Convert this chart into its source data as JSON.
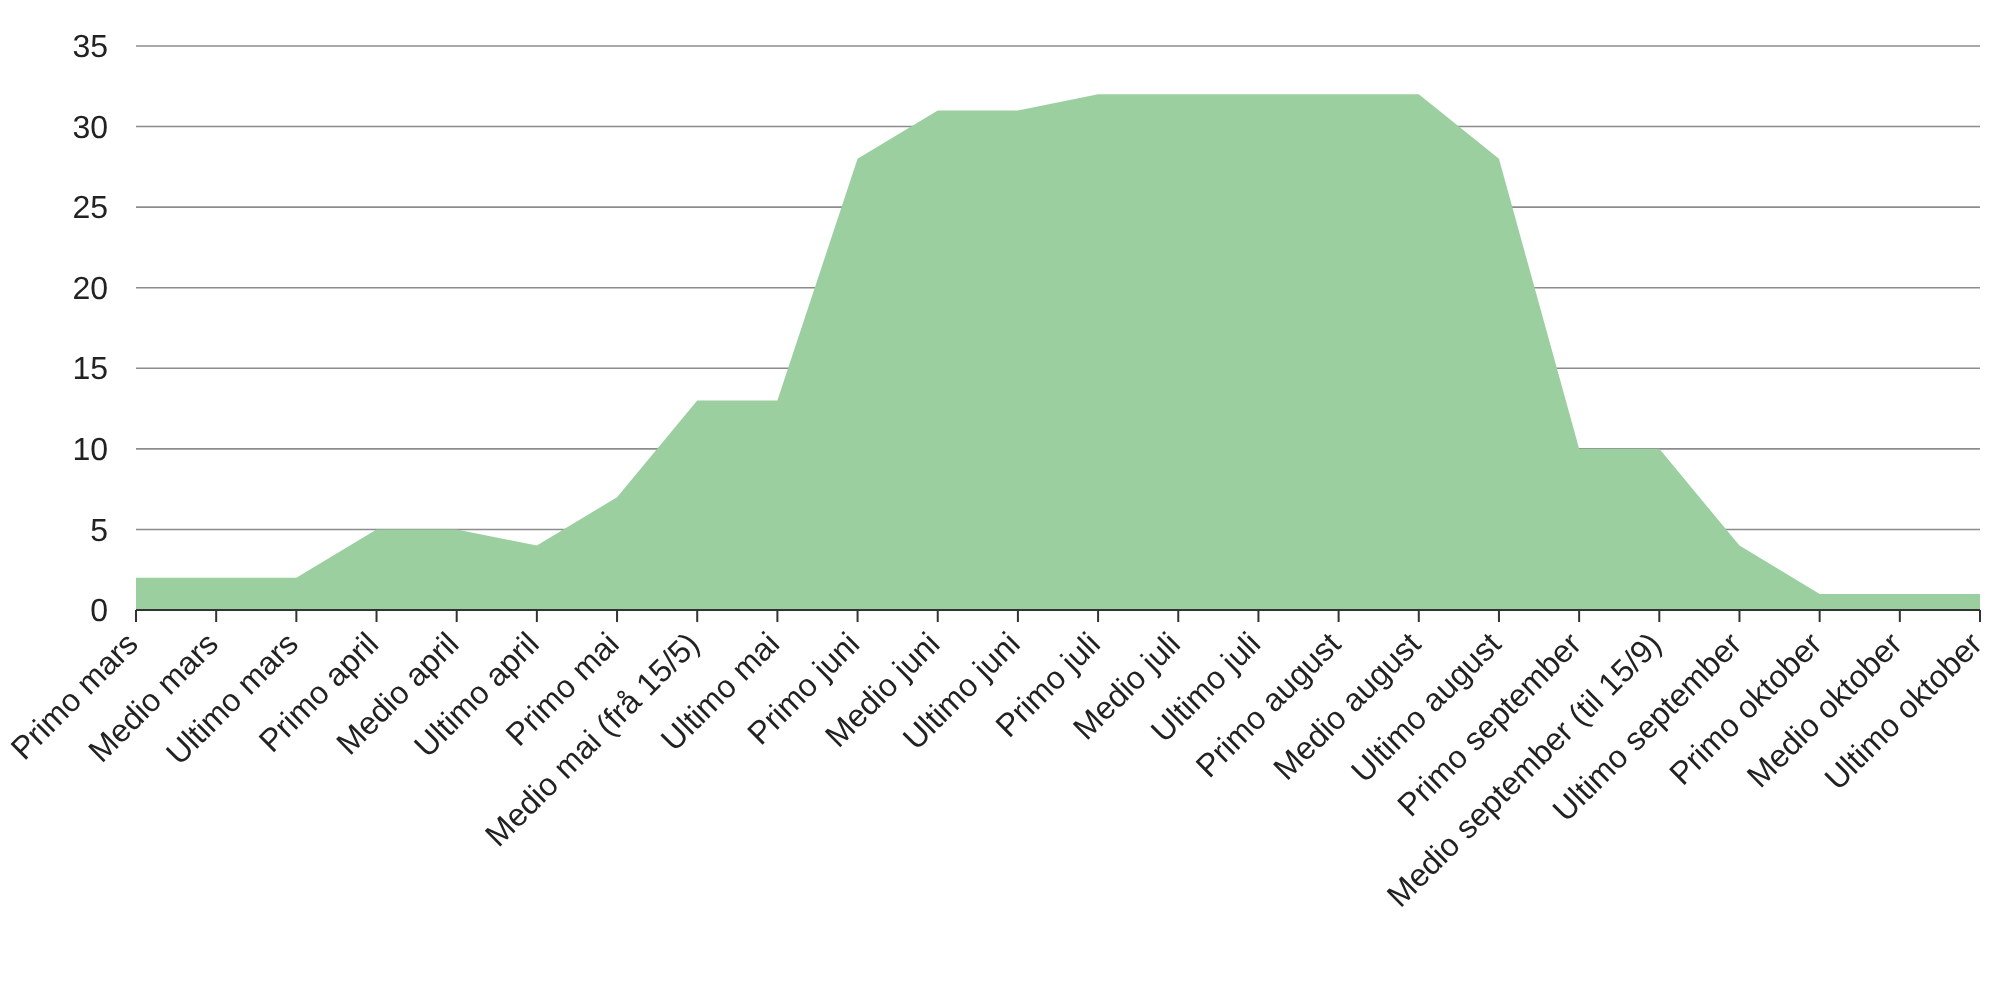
{
  "chart_data": {
    "type": "area",
    "categories": [
      "Primo mars",
      "Medio mars",
      "Ultimo mars",
      "Primo april",
      "Medio april",
      "Ultimo april",
      "Primo mai",
      "Medio mai (frå 15/5)",
      "Ultimo mai",
      "Primo juni",
      "Medio juni",
      "Ultimo juni",
      "Primo juli",
      "Medio juli",
      "Ultimo juli",
      "Primo august",
      "Medio august",
      "Ultimo august",
      "Primo september",
      "Medio september (til 15/9)",
      "Ultimo september",
      "Primo oktober",
      "Medio oktober",
      "Ultimo oktober"
    ],
    "values": [
      2,
      2,
      2,
      5,
      5,
      4,
      7,
      13,
      13,
      28,
      31,
      31,
      32,
      32,
      32,
      32,
      32,
      28,
      10,
      10,
      4,
      1,
      1,
      1
    ],
    "color": "#9bcfa0",
    "ylim": [
      0,
      35
    ],
    "yticks": [
      0,
      5,
      10,
      15,
      20,
      25,
      30,
      35
    ],
    "grid": "y"
  }
}
